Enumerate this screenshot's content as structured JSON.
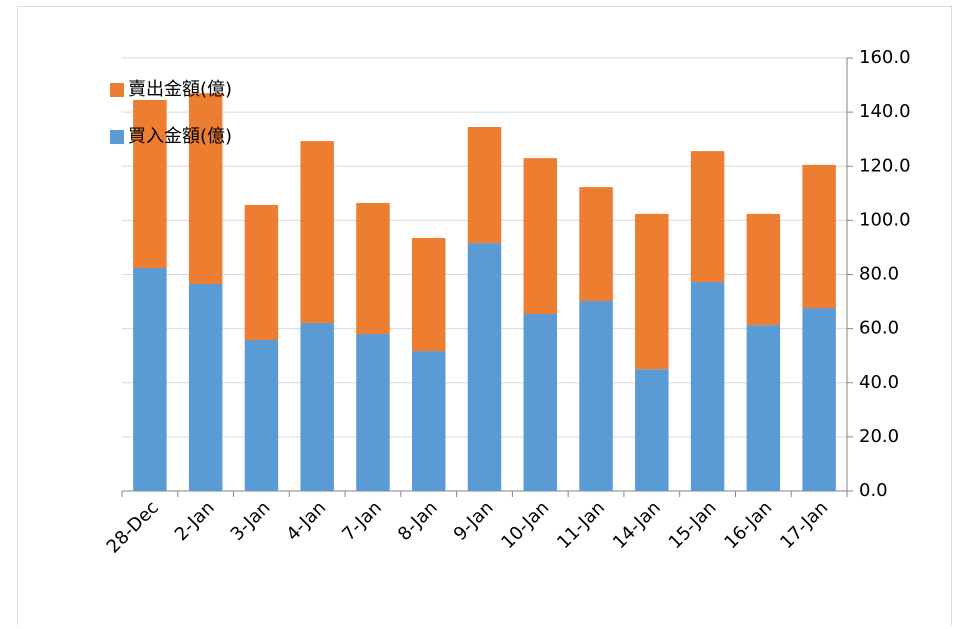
{
  "chart_data": {
    "type": "stacked-bar",
    "categories": [
      "28-Dec",
      "2-Jan",
      "3-Jan",
      "4-Jan",
      "7-Jan",
      "8-Jan",
      "9-Jan",
      "10-Jan",
      "11-Jan",
      "14-Jan",
      "15-Jan",
      "16-Jan",
      "17-Jan"
    ],
    "series": [
      {
        "name": "買入金額(億)",
        "color": "#5b9bd5",
        "values": [
          82.4,
          76.5,
          55.8,
          62.1,
          58.0,
          51.7,
          91.6,
          65.4,
          70.2,
          45.0,
          77.2,
          61.3,
          67.6
        ]
      },
      {
        "name": "賣出金額(億)",
        "color": "#ed7d31",
        "values": [
          62.1,
          70.5,
          49.9,
          67.2,
          48.4,
          41.8,
          42.9,
          57.6,
          42.1,
          57.4,
          48.4,
          41.1,
          52.9
        ]
      }
    ],
    "ylim": [
      0,
      160
    ],
    "yticks": [
      {
        "value": 0,
        "label": "0.0"
      },
      {
        "value": 20,
        "label": "20.0"
      },
      {
        "value": 40,
        "label": "40.0"
      },
      {
        "value": 60,
        "label": "60.0"
      },
      {
        "value": 80,
        "label": "80.0"
      },
      {
        "value": 100,
        "label": "100.0"
      },
      {
        "value": 120,
        "label": "120.0"
      },
      {
        "value": 140,
        "label": "140.0"
      },
      {
        "value": 160,
        "label": "160.0"
      }
    ],
    "grid": true,
    "y_axis_side": "right",
    "legend": "top-left"
  }
}
